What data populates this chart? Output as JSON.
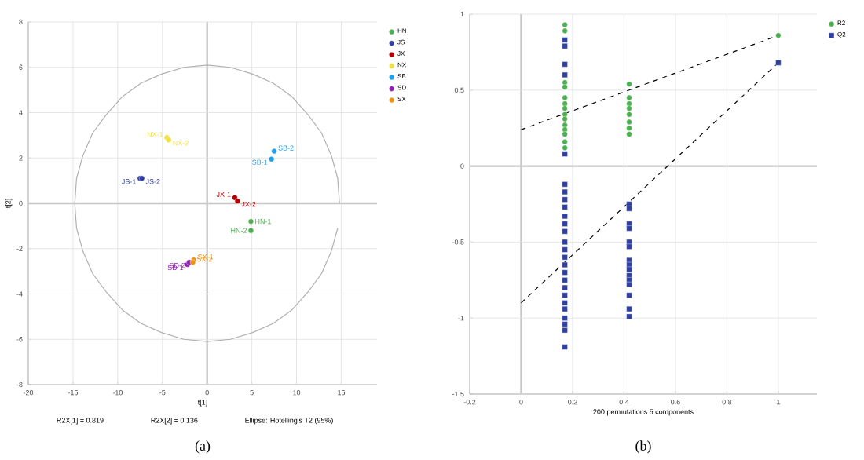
{
  "chart_data": [
    {
      "type": "scatter",
      "subtitle": "(a)",
      "xlabel": "t[1]",
      "ylabel": "t[2]",
      "xlim": [
        -20,
        19
      ],
      "ylim": [
        -8,
        8
      ],
      "xticks": [
        -20,
        -15,
        -10,
        -5,
        0,
        5,
        10,
        15
      ],
      "yticks": [
        -8,
        -6,
        -4,
        -2,
        0,
        2,
        4,
        6,
        8
      ],
      "grid": true,
      "legend": "top right",
      "series": [
        {
          "name": "HN",
          "color": "#4caf50",
          "marker": "circle",
          "x": [
            4.9,
            4.9
          ],
          "values": [
            -0.8,
            -1.2
          ]
        },
        {
          "name": "JS",
          "color": "#3040a0",
          "marker": "circle",
          "x": [
            -7.5,
            -7.3
          ],
          "values": [
            1.1,
            1.1
          ]
        },
        {
          "name": "JX",
          "color": "#b00000",
          "marker": "circle",
          "x": [
            3.1,
            3.4
          ],
          "values": [
            0.25,
            0.1
          ]
        },
        {
          "name": "NX",
          "color": "#f0e040",
          "marker": "circle",
          "x": [
            -4.5,
            -4.3
          ],
          "values": [
            2.9,
            2.8
          ]
        },
        {
          "name": "SB",
          "color": "#20a0e8",
          "marker": "circle",
          "x": [
            7.2,
            7.5
          ],
          "values": [
            1.95,
            2.3
          ]
        },
        {
          "name": "SD",
          "color": "#9020b0",
          "marker": "circle",
          "x": [
            -2.2,
            -2.0
          ],
          "values": [
            -2.7,
            -2.6
          ]
        },
        {
          "name": "SX",
          "color": "#f09010",
          "marker": "circle",
          "x": [
            -1.5,
            -1.6
          ],
          "values": [
            -2.5,
            -2.6
          ]
        },
        {
          "type": "line",
          "color": "#b0b0b0",
          "line_style": "solid",
          "x": [
            14.8,
            14.6,
            13.9,
            12.8,
            11.3,
            9.5,
            7.4,
            5.1,
            2.6,
            0,
            -2.6,
            -5.1,
            -7.4,
            -9.5,
            -11.3,
            -12.8,
            -13.9,
            -14.6,
            -14.8,
            -14.6,
            -13.9,
            -12.8,
            -11.3,
            -9.5,
            -7.4,
            -5.1,
            -2.6,
            0,
            2.6,
            5.1,
            7.4,
            9.5,
            11.3,
            12.8,
            13.9,
            14.6
          ],
          "values": [
            0,
            1.1,
            2.1,
            3.1,
            3.9,
            4.7,
            5.3,
            5.7,
            6.0,
            6.1,
            6.0,
            5.7,
            5.3,
            4.7,
            3.9,
            3.1,
            2.1,
            1.1,
            0,
            -1.1,
            -2.1,
            -3.1,
            -3.9,
            -4.7,
            -5.3,
            -5.7,
            -6.0,
            -6.1,
            -6.0,
            -5.7,
            -5.3,
            -4.7,
            -3.9,
            -3.1,
            -2.1,
            -1.1
          ]
        }
      ],
      "annotations": [
        {
          "text": "HN-1",
          "x": 4.9,
          "y": -0.8
        },
        {
          "text": "HN-2",
          "x": 4.9,
          "y": -1.2
        },
        {
          "text": "JS-1",
          "x": -7.5,
          "y": 1.1
        },
        {
          "text": "JS-2",
          "x": -7.3,
          "y": 1.1
        },
        {
          "text": "JX-1",
          "x": 3.1,
          "y": 0.25
        },
        {
          "text": "JX-2",
          "x": 3.4,
          "y": 0.1
        },
        {
          "text": "NX-1",
          "x": -4.5,
          "y": 2.9
        },
        {
          "text": "NX-2",
          "x": -4.3,
          "y": 2.8
        },
        {
          "text": "SB-1",
          "x": 7.2,
          "y": 1.95
        },
        {
          "text": "SB-2",
          "x": 7.5,
          "y": 2.3
        },
        {
          "text": "SD-1",
          "x": -2.2,
          "y": -2.7
        },
        {
          "text": "SD-2",
          "x": -2.0,
          "y": -2.6
        },
        {
          "text": "SX-1",
          "x": -1.5,
          "y": -2.5
        },
        {
          "text": "SX-2",
          "x": -1.6,
          "y": -2.6
        },
        "R2X[1] = 0.819",
        "R2X[2] = 0.136",
        "Ellipse: Hotelling's T2 (95%)"
      ]
    },
    {
      "type": "scatter",
      "subtitle": "(b)",
      "xlabel": "200 permutations 5 components",
      "xlim": [
        -0.2,
        1.15
      ],
      "ylim": [
        -1.5,
        1
      ],
      "xticks": [
        -0.2,
        0,
        0.2,
        0.4,
        0.6,
        0.8,
        1
      ],
      "yticks": [
        -1.5,
        -1,
        -0.5,
        0,
        0.5,
        1
      ],
      "grid": true,
      "legend": "top right",
      "series": [
        {
          "name": "R2",
          "color": "#4caf50",
          "marker": "circle",
          "x": [
            0.17,
            0.17,
            0.17,
            0.17,
            0.17,
            0.17,
            0.17,
            0.17,
            0.17,
            0.17,
            0.17,
            0.17,
            0.17,
            0.17,
            0.42,
            0.42,
            0.42,
            0.42,
            0.42,
            0.42,
            0.42,
            0.42,
            1
          ],
          "values": [
            0.93,
            0.89,
            0.55,
            0.52,
            0.45,
            0.41,
            0.38,
            0.34,
            0.31,
            0.27,
            0.24,
            0.21,
            0.16,
            0.12,
            0.54,
            0.45,
            0.41,
            0.38,
            0.34,
            0.29,
            0.25,
            0.21,
            0.86
          ]
        },
        {
          "name": "Q2",
          "color": "#3040a0",
          "marker": "square",
          "x": [
            0.17,
            0.17,
            0.17,
            0.17,
            0.17,
            0.17,
            0.17,
            0.17,
            0.17,
            0.17,
            0.17,
            0.17,
            0.17,
            0.17,
            0.17,
            0.17,
            0.17,
            0.17,
            0.17,
            0.17,
            0.17,
            0.17,
            0.17,
            0.17,
            0.17,
            0.17,
            0.42,
            0.42,
            0.42,
            0.42,
            0.42,
            0.42,
            0.42,
            0.42,
            0.42,
            0.42,
            0.42,
            0.42,
            0.42,
            0.42,
            0.42,
            1
          ],
          "values": [
            0.83,
            0.79,
            0.67,
            0.6,
            0.08,
            -0.12,
            -0.17,
            -0.22,
            -0.27,
            -0.33,
            -0.38,
            -0.43,
            -0.5,
            -0.55,
            -0.6,
            -0.65,
            -0.7,
            -0.75,
            -0.8,
            -0.85,
            -0.9,
            -0.94,
            -1,
            -1.04,
            -1.08,
            -1.19,
            -0.25,
            -0.28,
            -0.38,
            -0.41,
            -0.5,
            -0.53,
            -0.62,
            -0.65,
            -0.68,
            -0.72,
            -0.75,
            -0.78,
            -0.85,
            -0.94,
            -0.99,
            0.68
          ]
        },
        {
          "type": "line",
          "color": "#000000",
          "line_style": "dashed",
          "x": [
            0,
            1
          ],
          "values": [
            0.24,
            0.86
          ]
        },
        {
          "type": "line",
          "color": "#000000",
          "line_style": "dashed",
          "x": [
            0,
            1
          ],
          "values": [
            -0.9,
            0.68
          ]
        }
      ]
    }
  ]
}
